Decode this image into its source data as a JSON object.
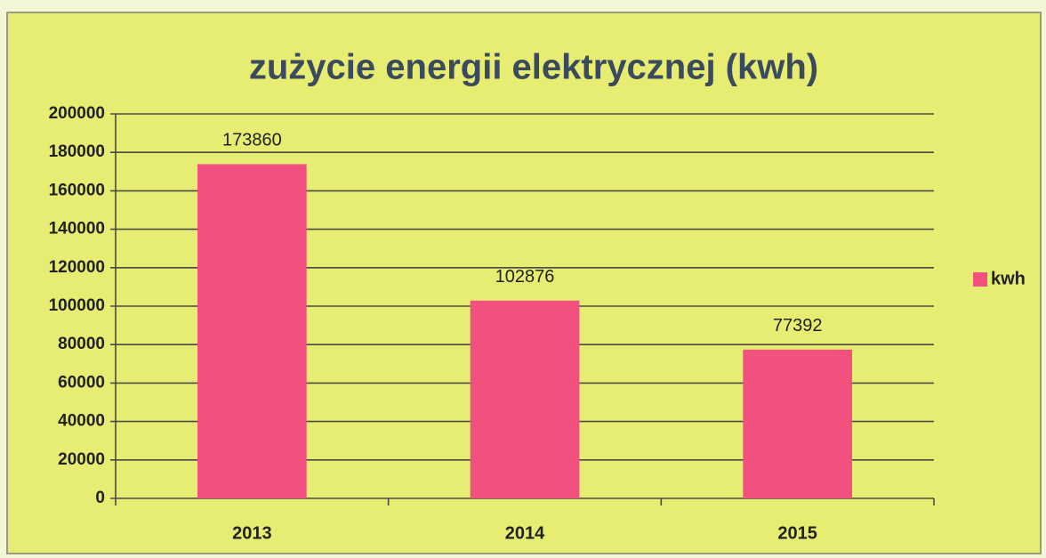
{
  "chart_data": {
    "type": "bar",
    "title": "zużycie energii elektrycznej (kwh)",
    "categories": [
      "2013",
      "2014",
      "2015"
    ],
    "series": [
      {
        "name": "kwh",
        "color": "#f2507e",
        "values": [
          173860,
          102876,
          77392
        ]
      }
    ],
    "ylim": [
      0,
      200000
    ],
    "yticks": [
      0,
      20000,
      40000,
      60000,
      80000,
      100000,
      120000,
      140000,
      160000,
      180000,
      200000
    ],
    "grid": true,
    "legend": "right"
  }
}
